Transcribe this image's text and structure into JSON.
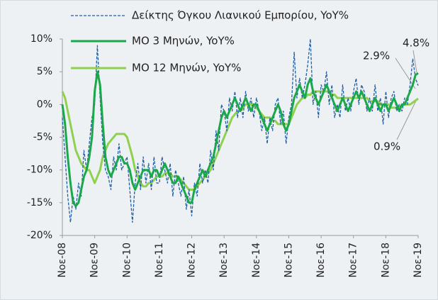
{
  "chart_data": {
    "type": "line",
    "categories": [
      "Νοε-08",
      null,
      null,
      null,
      null,
      null,
      null,
      null,
      null,
      null,
      null,
      null,
      "Νοε-09",
      null,
      null,
      null,
      null,
      null,
      null,
      null,
      null,
      null,
      null,
      null,
      "Νοε-10",
      null,
      null,
      null,
      null,
      null,
      null,
      null,
      null,
      null,
      null,
      null,
      "Νοε-11",
      null,
      null,
      null,
      null,
      null,
      null,
      null,
      null,
      null,
      null,
      null,
      "Νοε-12",
      null,
      null,
      null,
      null,
      null,
      null,
      null,
      null,
      null,
      null,
      null,
      "Νοε-13",
      null,
      null,
      null,
      null,
      null,
      null,
      null,
      null,
      null,
      null,
      null,
      "Νοε-14",
      null,
      null,
      null,
      null,
      null,
      null,
      null,
      null,
      null,
      null,
      null,
      "Νοε-15",
      null,
      null,
      null,
      null,
      null,
      null,
      null,
      null,
      null,
      null,
      null,
      "Νοε-16",
      null,
      null,
      null,
      null,
      null,
      null,
      null,
      null,
      null,
      null,
      null,
      "Νοε-17",
      null,
      null,
      null,
      null,
      null,
      null,
      null,
      null,
      null,
      null,
      null,
      "Νοε-18",
      null,
      null,
      null,
      null,
      null,
      null,
      null,
      null,
      null,
      null,
      null,
      "Νοε-19"
    ],
    "series": [
      {
        "name": "Δείκτης Όγκου Λιανικού Εμπορίου, YoY%",
        "color": "#1f5fa8",
        "dashed": true,
        "values": [
          -2,
          -8,
          -14,
          -18,
          -14,
          -16,
          -12,
          -14,
          -7,
          -10,
          -6,
          -2,
          0,
          9,
          1,
          -6,
          -10,
          -11,
          -13,
          -8,
          -10,
          -6,
          -10,
          -9,
          -8,
          -13,
          -18,
          -12,
          -9,
          -13,
          -8,
          -12,
          -9,
          -13,
          -8,
          -12,
          -12,
          -8,
          -10,
          -12,
          -9,
          -14,
          -10,
          -12,
          -14,
          -11,
          -16,
          -13,
          -17,
          -12,
          -14,
          -9,
          -12,
          -10,
          -12,
          -7,
          -10,
          -4,
          -7,
          0,
          -1,
          -4,
          1,
          -1,
          2,
          -2,
          1,
          -2,
          2,
          -1,
          1,
          -2,
          1,
          -1,
          -4,
          -2,
          -6,
          -2,
          -4,
          0,
          1,
          -3,
          -1,
          -6,
          -2,
          0,
          8,
          1,
          4,
          1,
          3,
          6,
          10,
          0,
          2,
          -2,
          3,
          2,
          5,
          0,
          3,
          -2,
          0,
          -2,
          3,
          -1,
          1,
          -1,
          2,
          4,
          0,
          3,
          2,
          -1,
          1,
          -1,
          3,
          -1,
          1,
          -3,
          2,
          -2,
          1,
          2,
          -1,
          0,
          -1,
          1,
          0,
          3,
          7,
          4,
          2.9
        ]
      },
      {
        "name": "ΜΟ 3 Μηνών, YoY%",
        "color": "#1aa84a",
        "width": 3,
        "values": [
          0,
          -3,
          -8,
          -12,
          -15,
          -15.5,
          -15,
          -13,
          -11,
          -10,
          -8,
          -5,
          2,
          5,
          3,
          -3,
          -8,
          -10,
          -11,
          -10,
          -9,
          -8,
          -8,
          -9,
          -9,
          -10,
          -12,
          -13,
          -12,
          -11,
          -10,
          -10,
          -10,
          -11,
          -10,
          -10,
          -11,
          -10,
          -9,
          -10,
          -11,
          -12,
          -12,
          -11,
          -12,
          -13,
          -14,
          -15,
          -15,
          -13,
          -12,
          -11,
          -10,
          -11,
          -10,
          -9,
          -8,
          -6,
          -4,
          -2,
          -1,
          -2,
          -1,
          0,
          1,
          0,
          -1,
          0,
          1,
          0,
          -1,
          0,
          0,
          -1,
          -2,
          -3,
          -4,
          -3,
          -2,
          -1,
          0,
          -1,
          -3,
          -4,
          -3,
          -1,
          1,
          2,
          3,
          2,
          1,
          3,
          4,
          2,
          1,
          0,
          1,
          2,
          3,
          2,
          1,
          0,
          -1,
          0,
          1,
          0,
          -1,
          0,
          1,
          2,
          1,
          2,
          1,
          0,
          -1,
          0,
          1,
          0,
          -1,
          0,
          0,
          -1,
          0,
          1,
          0,
          -1,
          0,
          0,
          1,
          2,
          3,
          4.5,
          4.8
        ]
      },
      {
        "name": "ΜΟ 12 Μηνών, YoY%",
        "color": "#8fd14f",
        "width": 3,
        "values": [
          2,
          1,
          -1,
          -3,
          -5,
          -7,
          -8,
          -9,
          -9.5,
          -10,
          -10,
          -11,
          -12,
          -11,
          -10,
          -8,
          -7,
          -6,
          -5.5,
          -5,
          -4.5,
          -4.5,
          -4.5,
          -4.5,
          -5,
          -6.5,
          -8,
          -10,
          -11,
          -12,
          -12.5,
          -12.5,
          -12,
          -12,
          -11.5,
          -11,
          -11,
          -11,
          -10.5,
          -10.5,
          -10.5,
          -11,
          -11,
          -11,
          -11.5,
          -12,
          -12.5,
          -13,
          -13,
          -13,
          -12.5,
          -12,
          -11.5,
          -11,
          -10.5,
          -10,
          -9,
          -8,
          -7,
          -6,
          -5,
          -4,
          -3,
          -2,
          -1.5,
          -1,
          -1,
          -0.5,
          0,
          0,
          0,
          0,
          -0.5,
          -1,
          -1.5,
          -2,
          -2,
          -2,
          -2.5,
          -2.5,
          -3,
          -3,
          -3,
          -3,
          -3,
          -2,
          -1,
          0,
          0.5,
          1,
          1,
          1.5,
          1.5,
          2,
          2,
          2,
          2,
          2,
          2,
          2,
          1.5,
          1.5,
          1,
          1,
          1,
          1,
          1,
          1,
          1,
          1,
          1,
          1,
          1,
          1,
          0.5,
          0.5,
          0.5,
          0.5,
          0,
          0,
          0,
          0,
          -0.5,
          -0.5,
          -0.5,
          -0.5,
          0,
          0,
          0,
          0,
          0.3,
          0.6,
          0.9
        ]
      }
    ],
    "ylim": [
      -20,
      10
    ],
    "yticks": [
      {
        "value": -20,
        "label": "-20%"
      },
      {
        "value": -15,
        "label": "-15%"
      },
      {
        "value": -10,
        "label": "-10%"
      },
      {
        "value": -5,
        "label": "-5%"
      },
      {
        "value": 0,
        "label": "0%"
      },
      {
        "value": 5,
        "label": "5%"
      },
      {
        "value": 10,
        "label": "10%"
      }
    ],
    "annotations": [
      "4.8%",
      "2.9%",
      "0.9%"
    ],
    "legend": "top-left"
  }
}
